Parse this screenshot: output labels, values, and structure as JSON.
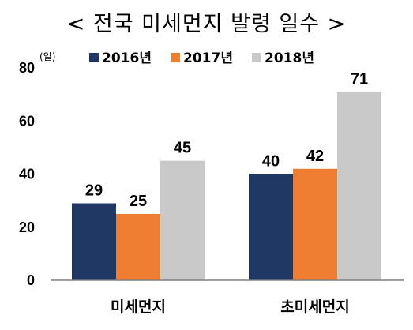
{
  "chart_data": {
    "type": "bar",
    "title": "< 전국 미세먼지 발령 일수 >",
    "ylabel": "(일)",
    "xlabel": "",
    "ylim": [
      0,
      80
    ],
    "yticks": [
      0,
      20,
      40,
      60,
      80
    ],
    "categories": [
      "미세먼지",
      "초미세먼지"
    ],
    "series": [
      {
        "name": "2016년",
        "color": "#1f3864",
        "values": [
          29,
          40
        ]
      },
      {
        "name": "2017년",
        "color": "#ed7d31",
        "values": [
          25,
          42
        ]
      },
      {
        "name": "2018년",
        "color": "#c9c9c9",
        "values": [
          45,
          71
        ]
      }
    ],
    "legend_position": "top",
    "grid": false
  }
}
